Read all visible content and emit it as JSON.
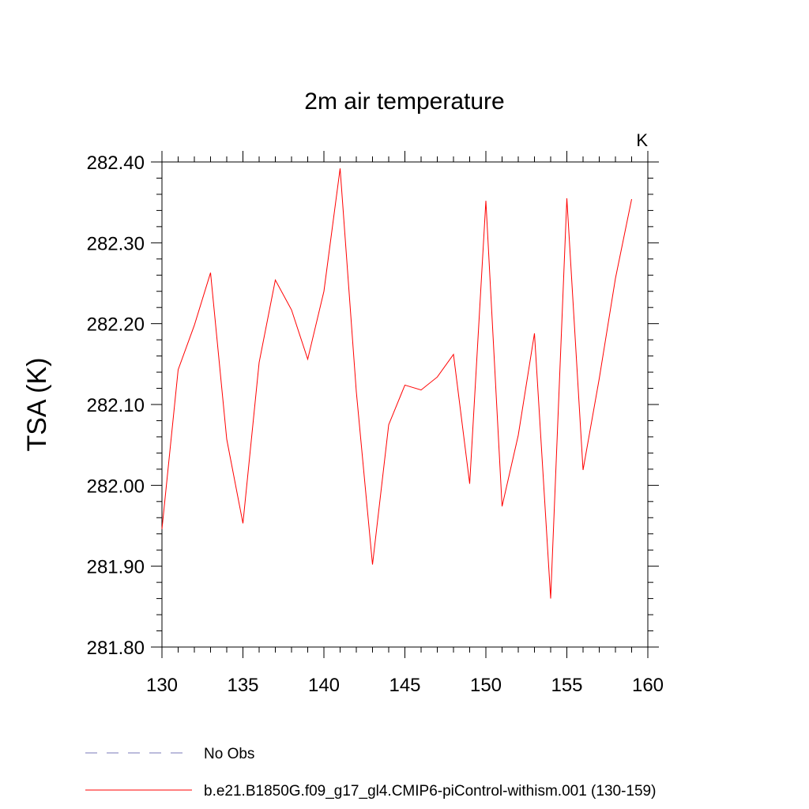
{
  "chart_data": {
    "type": "line",
    "title": "2m air temperature",
    "units_label": "K",
    "ylabel": "TSA  (K)",
    "xlabel": "",
    "xlim": [
      130,
      160
    ],
    "ylim": [
      281.8,
      282.4
    ],
    "x_ticks": [
      130,
      135,
      140,
      145,
      150,
      155,
      160
    ],
    "y_ticks": [
      281.8,
      281.9,
      282.0,
      282.1,
      282.2,
      282.3,
      282.4
    ],
    "y_tick_labels": [
      "281.80",
      "281.90",
      "282.00",
      "282.10",
      "282.20",
      "282.30",
      "282.40"
    ],
    "grid": false,
    "legend_position": "bottom",
    "series": [
      {
        "name": "b.e21.B1850G.f09_g17_gl4.CMIP6-piControl-withism.001 (130-159)",
        "color": "#ff0000",
        "style": "solid",
        "x": [
          130,
          131,
          132,
          133,
          134,
          135,
          136,
          137,
          138,
          139,
          140,
          141,
          142,
          143,
          144,
          145,
          146,
          147,
          148,
          149,
          150,
          151,
          152,
          153,
          154,
          155,
          156,
          157,
          158,
          159
        ],
        "y": [
          281.946,
          282.143,
          282.198,
          282.263,
          282.057,
          281.953,
          282.152,
          282.254,
          282.217,
          282.156,
          282.24,
          282.392,
          282.116,
          281.902,
          282.075,
          282.124,
          282.118,
          282.134,
          282.162,
          282.002,
          282.352,
          281.974,
          282.062,
          282.188,
          281.86,
          282.355,
          282.019,
          282.132,
          282.256,
          282.354
        ]
      }
    ],
    "legend": [
      {
        "label": "No Obs",
        "color": "#7a7ab8",
        "style": "dashed"
      },
      {
        "label": "b.e21.B1850G.f09_g17_gl4.CMIP6-piControl-withism.001 (130-159)",
        "color": "#ff0000",
        "style": "solid"
      }
    ]
  }
}
